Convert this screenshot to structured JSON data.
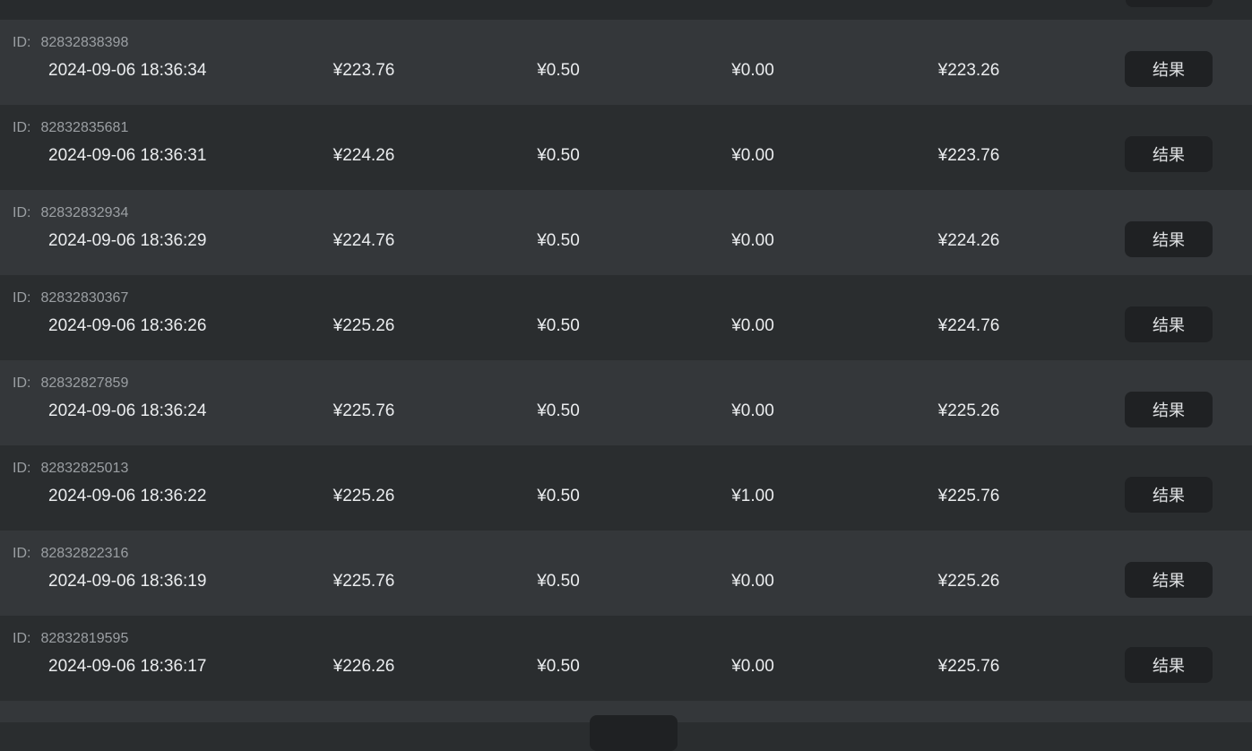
{
  "page": {
    "labels": {
      "id_prefix": "ID:",
      "result_button": "结果"
    },
    "colors": {
      "row_light": "#34373a",
      "row_dark": "#2a2d2f",
      "band_top": "#282b2d",
      "button_bg": "#1f2123",
      "text_primary": "#ebedef",
      "text_secondary": "#9b9fa3",
      "button_text": "#e0e2e4"
    }
  },
  "rows": [
    {
      "id": "82832838398",
      "datetime": "2024-09-06 18:36:34",
      "amounts": [
        "¥223.76",
        "¥0.50",
        "¥0.00",
        "¥223.26"
      ]
    },
    {
      "id": "82832835681",
      "datetime": "2024-09-06 18:36:31",
      "amounts": [
        "¥224.26",
        "¥0.50",
        "¥0.00",
        "¥223.76"
      ]
    },
    {
      "id": "82832832934",
      "datetime": "2024-09-06 18:36:29",
      "amounts": [
        "¥224.76",
        "¥0.50",
        "¥0.00",
        "¥224.26"
      ]
    },
    {
      "id": "82832830367",
      "datetime": "2024-09-06 18:36:26",
      "amounts": [
        "¥225.26",
        "¥0.50",
        "¥0.00",
        "¥224.76"
      ]
    },
    {
      "id": "82832827859",
      "datetime": "2024-09-06 18:36:24",
      "amounts": [
        "¥225.76",
        "¥0.50",
        "¥0.00",
        "¥225.26"
      ]
    },
    {
      "id": "82832825013",
      "datetime": "2024-09-06 18:36:22",
      "amounts": [
        "¥225.26",
        "¥0.50",
        "¥1.00",
        "¥225.76"
      ]
    },
    {
      "id": "82832822316",
      "datetime": "2024-09-06 18:36:19",
      "amounts": [
        "¥225.76",
        "¥0.50",
        "¥0.00",
        "¥225.26"
      ]
    },
    {
      "id": "82832819595",
      "datetime": "2024-09-06 18:36:17",
      "amounts": [
        "¥226.26",
        "¥0.50",
        "¥0.00",
        "¥225.76"
      ]
    }
  ]
}
